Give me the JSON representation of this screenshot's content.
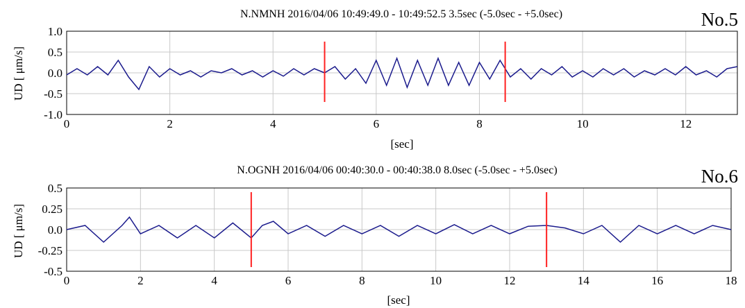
{
  "chart_data": [
    {
      "type": "line",
      "panel_tag": "No.5",
      "title": "N.NMNH 2016/04/06 10:49:49.0 - 10:49:52.5  3.5sec (-5.0sec - +5.0sec)",
      "xlabel": "[sec]",
      "ylabel": "UD [ μm/s]",
      "xlim": [
        0,
        13
      ],
      "ylim": [
        -1.0,
        1.0
      ],
      "xticks": [
        "0",
        "2",
        "4",
        "6",
        "8",
        "10",
        "12"
      ],
      "xtick_values": [
        0,
        2,
        4,
        6,
        8,
        10,
        12
      ],
      "yticks": [
        "1.0",
        "0.5",
        "0.0",
        "-0.5",
        "-1.0"
      ],
      "ytick_values": [
        1.0,
        0.5,
        0.0,
        -0.5,
        -1.0
      ],
      "grid": true,
      "markers": [
        5.0,
        8.5
      ],
      "marker_range": [
        -0.7,
        0.75
      ],
      "series": [
        {
          "color": "#1a1a8c",
          "x": [
            0,
            0.2,
            0.4,
            0.6,
            0.8,
            1.0,
            1.2,
            1.4,
            1.6,
            1.8,
            2.0,
            2.2,
            2.4,
            2.6,
            2.8,
            3.0,
            3.2,
            3.4,
            3.6,
            3.8,
            4.0,
            4.2,
            4.4,
            4.6,
            4.8,
            5.0,
            5.2,
            5.4,
            5.6,
            5.8,
            6.0,
            6.2,
            6.4,
            6.6,
            6.8,
            7.0,
            7.2,
            7.4,
            7.6,
            7.8,
            8.0,
            8.2,
            8.4,
            8.6,
            8.8,
            9.0,
            9.2,
            9.4,
            9.6,
            9.8,
            10.0,
            10.2,
            10.4,
            10.6,
            10.8,
            11.0,
            11.2,
            11.4,
            11.6,
            11.8,
            12.0,
            12.2,
            12.4,
            12.6,
            12.8,
            13.0
          ],
          "y": [
            -0.05,
            0.1,
            -0.05,
            0.15,
            -0.05,
            0.3,
            -0.1,
            -0.4,
            0.15,
            -0.1,
            0.1,
            -0.05,
            0.05,
            -0.1,
            0.05,
            0.0,
            0.1,
            -0.05,
            0.05,
            -0.1,
            0.05,
            -0.08,
            0.1,
            -0.05,
            0.1,
            0.0,
            0.15,
            -0.15,
            0.1,
            -0.25,
            0.3,
            -0.3,
            0.35,
            -0.35,
            0.3,
            -0.3,
            0.35,
            -0.3,
            0.25,
            -0.3,
            0.25,
            -0.15,
            0.3,
            -0.1,
            0.1,
            -0.15,
            0.1,
            -0.05,
            0.15,
            -0.1,
            0.05,
            -0.1,
            0.1,
            -0.05,
            0.1,
            -0.1,
            0.05,
            -0.05,
            0.1,
            -0.05,
            0.15,
            -0.05,
            0.05,
            -0.1,
            0.1,
            0.15
          ]
        }
      ]
    },
    {
      "type": "line",
      "panel_tag": "No.6",
      "title": "N.OGNH 2016/04/06 00:40:30.0 - 00:40:38.0  8.0sec (-5.0sec - +5.0sec)",
      "xlabel": "[sec]",
      "ylabel": "UD [ μm/s]",
      "xlim": [
        0,
        18
      ],
      "ylim": [
        -0.5,
        0.5
      ],
      "xticks": [
        "0",
        "2",
        "4",
        "6",
        "8",
        "10",
        "12",
        "14",
        "16",
        "18"
      ],
      "xtick_values": [
        0,
        2,
        4,
        6,
        8,
        10,
        12,
        14,
        16,
        18
      ],
      "yticks": [
        "0.5",
        "0.25",
        "0.0",
        "-0.25",
        "-0.5"
      ],
      "ytick_values": [
        0.5,
        0.25,
        0.0,
        -0.25,
        -0.5
      ],
      "grid": true,
      "markers": [
        5.0,
        13.0
      ],
      "marker_range": [
        -0.45,
        0.45
      ],
      "series": [
        {
          "color": "#1a1a8c",
          "x": [
            0,
            0.5,
            1.0,
            1.5,
            1.7,
            2.0,
            2.5,
            3.0,
            3.5,
            4.0,
            4.5,
            5.0,
            5.3,
            5.6,
            6.0,
            6.5,
            7.0,
            7.5,
            8.0,
            8.5,
            9.0,
            9.5,
            10.0,
            10.5,
            11.0,
            11.5,
            12.0,
            12.5,
            13.0,
            13.5,
            14.0,
            14.5,
            15.0,
            15.5,
            16.0,
            16.5,
            17.0,
            17.5,
            18.0
          ],
          "y": [
            0.0,
            0.05,
            -0.15,
            0.05,
            0.15,
            -0.05,
            0.05,
            -0.1,
            0.05,
            -0.1,
            0.08,
            -0.1,
            0.05,
            0.1,
            -0.05,
            0.05,
            -0.08,
            0.05,
            -0.05,
            0.05,
            -0.08,
            0.05,
            -0.05,
            0.06,
            -0.05,
            0.05,
            -0.05,
            0.04,
            0.05,
            0.02,
            -0.05,
            0.05,
            -0.15,
            0.05,
            -0.05,
            0.05,
            -0.05,
            0.05,
            0.0
          ]
        }
      ]
    }
  ]
}
